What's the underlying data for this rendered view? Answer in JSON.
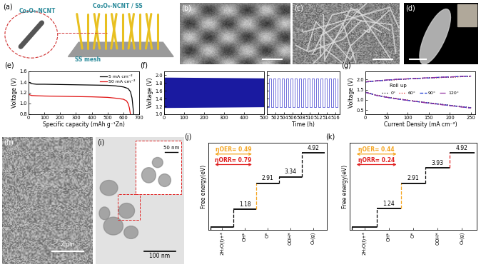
{
  "images": [
    {
      "panel": "(a)",
      "labels": [
        "Co₃O₄-NCNT",
        "Co₃O₄-NCNT / SS",
        "SS mesh"
      ]
    },
    {
      "panel": "(b)"
    },
    {
      "panel": "(c)"
    },
    {
      "panel": "(d)"
    },
    {
      "panel": "(h)",
      "scale_bar": "2 μm"
    },
    {
      "panel": "(i)",
      "scale_bar": "100 nm",
      "inset_scale_bar": "50 nm"
    }
  ],
  "chart_data": [
    {
      "type": "line",
      "title": "(e)",
      "x_label": "Specific capacity (mAh g⁻¹Zn)",
      "y_label": "Voltage (V)",
      "xlim": [
        0,
        700
      ],
      "xticks": [
        0,
        100,
        200,
        300,
        400,
        500,
        600,
        700
      ],
      "ylim": [
        0.8,
        1.6
      ],
      "yticks": [
        0.8,
        {
          "value": 1,
          "label": "1.0"
        },
        1.2,
        1.4,
        1.6
      ],
      "legend": "upper right",
      "series": [
        {
          "name": "5 mA cm⁻²",
          "color": "#000000",
          "line_style": "solid",
          "x": [
            0,
            20,
            50,
            100,
            200,
            300,
            400,
            500,
            550,
            600,
            630,
            645,
            655,
            662,
            665
          ],
          "values": [
            1.4,
            1.37,
            1.36,
            1.36,
            1.355,
            1.35,
            1.345,
            1.34,
            1.33,
            1.31,
            1.28,
            1.22,
            1.1,
            0.9,
            0.8
          ]
        },
        {
          "name": "50 mA cm⁻²",
          "color": "#e01010",
          "line_style": "solid",
          "x": [
            0,
            20,
            50,
            100,
            200,
            300,
            400,
            500,
            550,
            600,
            620,
            630,
            638,
            642,
            645
          ],
          "values": [
            1.17,
            1.15,
            1.145,
            1.14,
            1.135,
            1.13,
            1.125,
            1.115,
            1.1,
            1.08,
            1.05,
            1.0,
            0.92,
            0.85,
            0.8
          ]
        }
      ]
    },
    {
      "type": "area",
      "title": "(f)",
      "y_label": "Voltage (V)",
      "xlim": [
        0,
        500
      ],
      "xticks": [
        0,
        100,
        200,
        300,
        400,
        500
      ],
      "ylim": [
        1,
        2.1
      ],
      "yticks": [
        {
          "value": 1,
          "label": "1.0"
        },
        1.2,
        1.4,
        1.6,
        1.8,
        {
          "value": 2,
          "label": "2.0"
        }
      ],
      "x": [
        0,
        500
      ],
      "charge": [
        1.95,
        1.93
      ],
      "discharge": [
        1.17,
        1.19
      ],
      "color": "#1a1aa0"
    },
    {
      "type": "line",
      "line_style": "steps",
      "x_label": "Time (h)",
      "xlim": [
        500,
        517
      ],
      "xticks": [
        502,
        504,
        506,
        508,
        510,
        512,
        514,
        516
      ],
      "ylim": [
        1,
        2.1
      ],
      "yticks": [
        {
          "value": 1,
          "label": "1.0"
        },
        1.2,
        1.4,
        1.6,
        1.8,
        {
          "value": 2,
          "label": "2.0"
        }
      ],
      "tick_labels": "x",
      "color": "#5b5bd6",
      "x": [
        500,
        500.5,
        501,
        501.5,
        502,
        502.5,
        503,
        503.5,
        504,
        504.5,
        505,
        505.5,
        506,
        506.5,
        507,
        507.5,
        508,
        508.5,
        509,
        509.5,
        510,
        510.5,
        511,
        511.5,
        512,
        512.5,
        513,
        513.5,
        514,
        514.5,
        515,
        515.5,
        516,
        516.5
      ],
      "values": [
        1.18,
        1.92,
        1.18,
        1.92,
        1.18,
        1.92,
        1.18,
        1.92,
        1.18,
        1.92,
        1.18,
        1.92,
        1.18,
        1.92,
        1.18,
        1.92,
        1.18,
        1.92,
        1.18,
        1.92,
        1.18,
        1.92,
        1.18,
        1.92,
        1.18,
        1.92,
        1.18,
        1.92,
        1.18,
        1.92,
        1.18,
        1.92,
        1.18,
        1.92
      ]
    },
    {
      "type": "line",
      "title": "(g)",
      "x_label": "Current Density (mA cm⁻²)",
      "y_label": "Voltage (V)",
      "xlim": [
        0,
        260
      ],
      "xticks": [
        0,
        50,
        100,
        150,
        200,
        250
      ],
      "ylim": [
        0.3,
        2.4
      ],
      "yticks": [
        0.5,
        {
          "value": 1,
          "label": "1.0"
        },
        1.5,
        {
          "value": 2,
          "label": "2.0"
        }
      ],
      "legend": "center",
      "annotations": [
        {
          "text": "Roll up"
        }
      ],
      "x": [
        0,
        25,
        50,
        75,
        100,
        125,
        150,
        175,
        200,
        225,
        250
      ],
      "series": [
        {
          "name": "0°",
          "color": "#000000",
          "line_style": "dotted",
          "values": [
            1.38,
            1.24,
            1.14,
            1.06,
            0.99,
            0.92,
            0.86,
            0.8,
            0.74,
            0.68,
            0.62
          ],
          "charge_values": [
            1.88,
            1.93,
            1.97,
            2.0,
            2.03,
            2.05,
            2.08,
            2.1,
            2.12,
            2.14,
            2.16
          ]
        },
        {
          "name": "60°",
          "color": "#e01010",
          "line_style": "dotted",
          "values": [
            1.38,
            1.24,
            1.14,
            1.06,
            0.99,
            0.92,
            0.85,
            0.79,
            0.73,
            0.67,
            0.61
          ],
          "charge_values": [
            1.88,
            1.93,
            1.97,
            2.0,
            2.03,
            2.06,
            2.08,
            2.1,
            2.12,
            2.14,
            2.16
          ]
        },
        {
          "name": "90°",
          "color": "#1030d0",
          "line_style": "dashed",
          "values": [
            1.38,
            1.23,
            1.13,
            1.05,
            0.98,
            0.91,
            0.85,
            0.79,
            0.73,
            0.67,
            0.61
          ],
          "charge_values": [
            1.88,
            1.93,
            1.97,
            2.01,
            2.03,
            2.06,
            2.08,
            2.11,
            2.13,
            2.15,
            2.17
          ]
        },
        {
          "name": "120°",
          "color": "#9030a0",
          "line_style": "dashdot",
          "values": [
            1.37,
            1.23,
            1.13,
            1.05,
            0.98,
            0.91,
            0.84,
            0.78,
            0.72,
            0.66,
            0.6
          ],
          "charge_values": [
            1.89,
            1.94,
            1.98,
            2.01,
            2.04,
            2.06,
            2.09,
            2.11,
            2.13,
            2.15,
            2.17
          ]
        }
      ]
    },
    {
      "type": "energy_diagram",
      "title": "(j)",
      "y_label": "Free energy(eV)",
      "categories": [
        "2H₂O(l)+*",
        "OH*",
        "O*",
        "OOH*",
        "O₂(g)"
      ],
      "values": [
        0,
        1.18,
        2.91,
        3.34,
        4.92
      ],
      "value_labels": [
        null,
        "1.18",
        "2.91",
        "3.34",
        "4.92"
      ],
      "data_labels": true,
      "colors": [
        "#000000",
        "#000000",
        "#f5a623",
        "#000000",
        "#000000"
      ],
      "ylim": [
        -0.2,
        5.6
      ],
      "tick_labels": "x",
      "annotations": [
        {
          "text": "ηOER= 0.49",
          "color": "#f5a623"
        },
        {
          "text": "ηORR= 0.79",
          "color": "#e02020"
        }
      ]
    },
    {
      "type": "energy_diagram",
      "title": "(k)",
      "y_label": "Free energy(eV)",
      "categories": [
        "2H₂O(l)+*",
        "OH*",
        "O*",
        "OOH*",
        "O₂(g)"
      ],
      "values": [
        0,
        1.24,
        2.91,
        3.93,
        4.92
      ],
      "value_labels": [
        null,
        "1.24",
        "2.91",
        "3.93",
        "4.92"
      ],
      "data_labels": true,
      "colors": [
        "#000000",
        "#000000",
        "#f5a623",
        "#000000",
        "#e02020"
      ],
      "ylim": [
        -0.2,
        5.6
      ],
      "tick_labels": "x",
      "annotations": [
        {
          "text": "ηOER= 0.44",
          "color": "#f5a623"
        },
        {
          "text": "ηORR= 0.24",
          "color": "#e02020"
        }
      ]
    }
  ]
}
